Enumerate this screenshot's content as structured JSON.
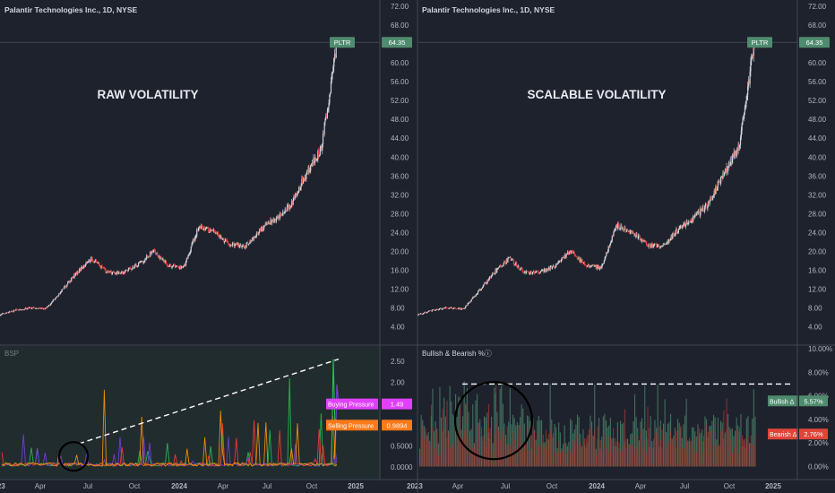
{
  "panels": [
    {
      "header": "Palantir Technologies Inc., 1D, NYSE",
      "watermark": "RAW VOLATILITY",
      "price_badge": {
        "symbol": "PLTR",
        "value": "64.35"
      },
      "indicator": {
        "name": "BSP",
        "axis_labels": [
          "2.50",
          "2.00",
          "1.50",
          "1.00",
          "0.5000",
          "0.0000"
        ],
        "badges": [
          {
            "label": "Buying Pressure",
            "value": "1.49",
            "color": "#e040fb"
          },
          {
            "label": "Selling Pressure",
            "value": "0.9894",
            "color": "#ff7a1a"
          }
        ]
      }
    },
    {
      "header": "Palantir Technologies Inc., 1D, NYSE",
      "watermark": "SCALABLE VOLATILITY",
      "price_badge": {
        "symbol": "PLTR",
        "value": "64.35"
      },
      "indicator": {
        "name": "Bullish & Bearish %ⓘ",
        "axis_labels": [
          "10.00%",
          "8.00%",
          "6.00%",
          "4.00%",
          "2.00%",
          "0.00%"
        ],
        "badges": [
          {
            "label": "Bullish Δ",
            "value": "5.57%",
            "color": "#4f8b6e"
          },
          {
            "label": "Bearish Δ",
            "value": "2.76%",
            "color": "#e0453a"
          }
        ]
      }
    }
  ],
  "price_axis_labels": [
    "72.00",
    "68.00",
    "64.00",
    "60.00",
    "56.00",
    "52.00",
    "48.00",
    "44.00",
    "40.00",
    "36.00",
    "32.00",
    "28.00",
    "24.00",
    "20.00",
    "16.00",
    "12.00",
    "8.00",
    "4.00"
  ],
  "time_axis_labels": [
    "2023",
    "Apr",
    "Jul",
    "Oct",
    "2024",
    "Apr",
    "Jul",
    "Oct",
    "2025"
  ],
  "chart_data": [
    {
      "type": "candlestick",
      "title": "Palantir Technologies Inc., 1D, NYSE",
      "annotation": "RAW VOLATILITY",
      "ylim": [
        0,
        74
      ],
      "x_range": [
        "2023-01",
        "2024-11"
      ],
      "close_path": [
        [
          "2023-01",
          6.5
        ],
        [
          "2023-02",
          7.5
        ],
        [
          "2023-03",
          8.0
        ],
        [
          "2023-04",
          7.8
        ],
        [
          "2023-05",
          11.5
        ],
        [
          "2023-06",
          15.5
        ],
        [
          "2023-07",
          18.5
        ],
        [
          "2023-08",
          15.5
        ],
        [
          "2023-09",
          15.5
        ],
        [
          "2023-10",
          17.0
        ],
        [
          "2023-11",
          20.0
        ],
        [
          "2023-12",
          17.0
        ],
        [
          "2024-01",
          16.5
        ],
        [
          "2024-02",
          25.5
        ],
        [
          "2024-03",
          24.0
        ],
        [
          "2024-04",
          21.5
        ],
        [
          "2024-05",
          21.0
        ],
        [
          "2024-06",
          24.5
        ],
        [
          "2024-07",
          27.0
        ],
        [
          "2024-08",
          30.0
        ],
        [
          "2024-09",
          36.5
        ],
        [
          "2024-10",
          42.0
        ],
        [
          "2024-11",
          64.35
        ]
      ],
      "last_price": 64.35,
      "indicator": {
        "name": "BSP",
        "ylim": [
          0,
          2.6
        ],
        "series": [
          {
            "name": "Buying Pressure",
            "last": 1.49,
            "color": "#e040fb"
          },
          {
            "name": "Selling Pressure",
            "last": 0.9894,
            "color": "#ff7a1a"
          }
        ]
      }
    },
    {
      "type": "candlestick",
      "title": "Palantir Technologies Inc., 1D, NYSE",
      "annotation": "SCALABLE VOLATILITY",
      "ylim": [
        0,
        74
      ],
      "x_range": [
        "2023-01",
        "2024-11"
      ],
      "last_price": 64.35,
      "indicator": {
        "name": "Bullish & Bearish %ⓘ",
        "type": "histogram",
        "ylim": [
          0,
          10
        ],
        "reference_level": 7.0,
        "series": [
          {
            "name": "Bullish Δ",
            "last": 5.57,
            "color": "#4f8b6e"
          },
          {
            "name": "Bearish Δ",
            "last": 2.76,
            "color": "#e0453a"
          }
        ]
      }
    }
  ],
  "colors": {
    "background": "#1e222d",
    "axis_text": "#b2b5be",
    "price_badge": "#4f8b6e",
    "up_candle": "#d1d4dc",
    "down_candle": "#e0453a",
    "grid": "#2a2e39"
  }
}
